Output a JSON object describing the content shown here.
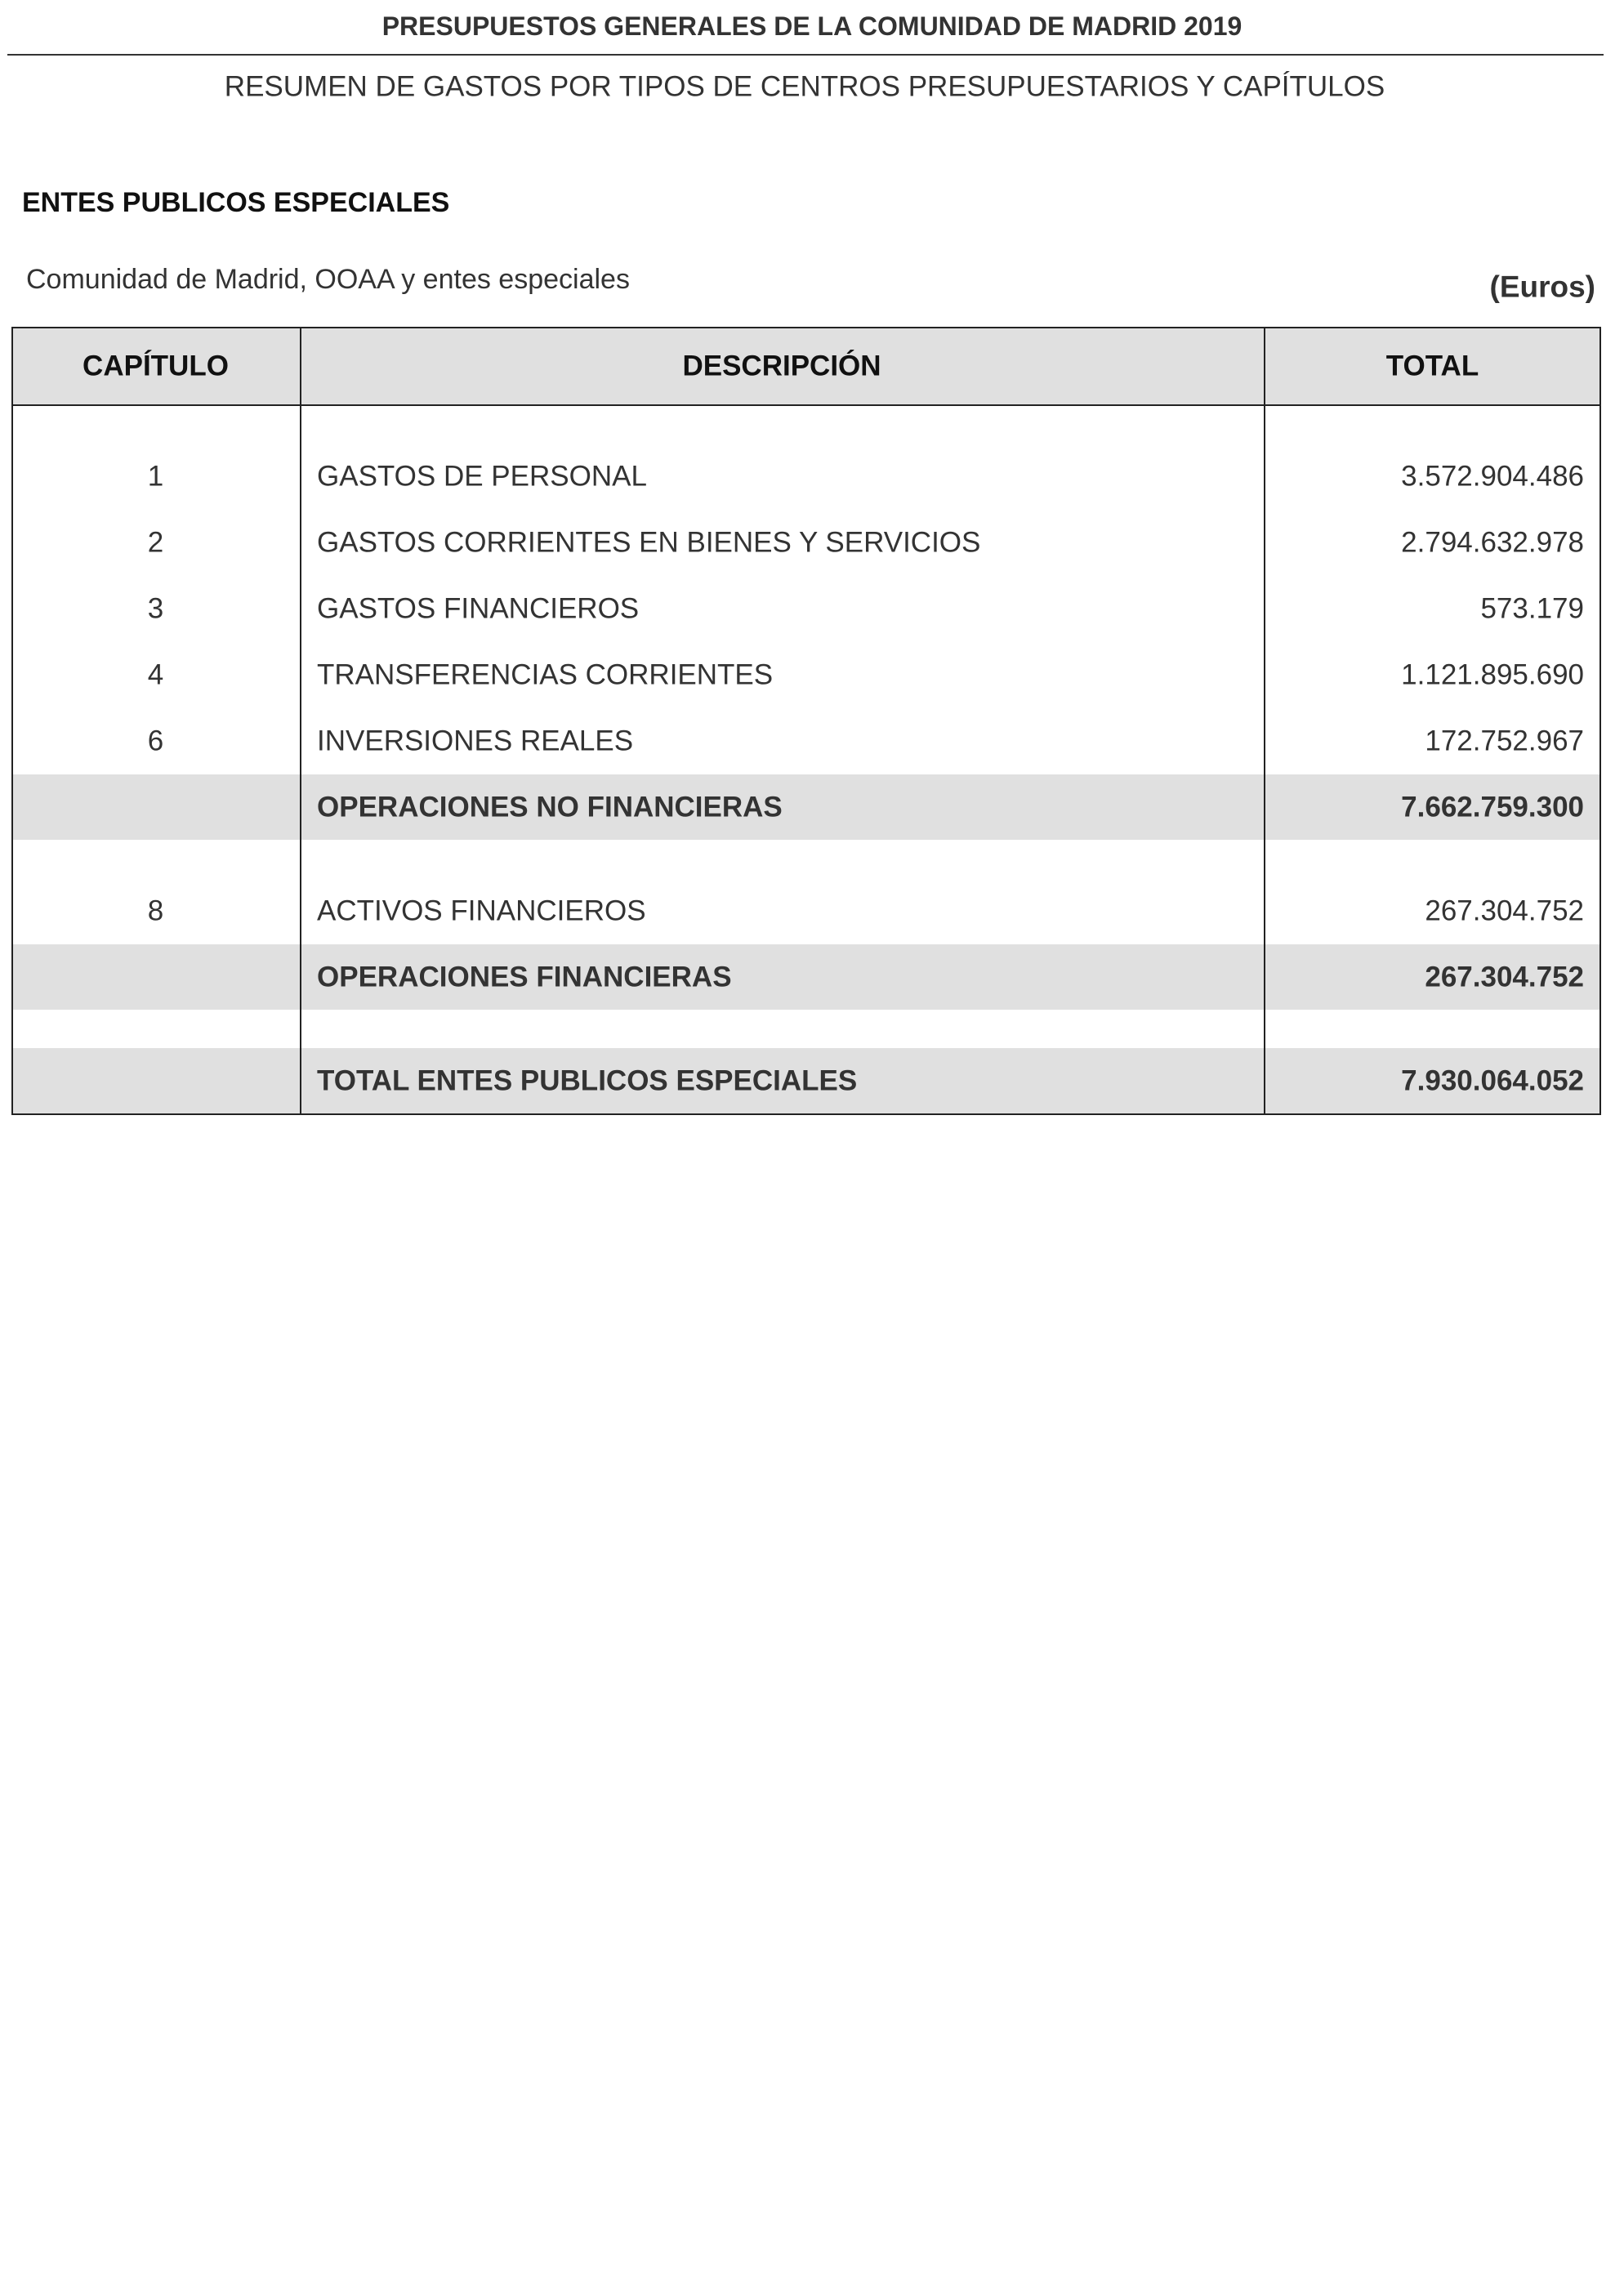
{
  "header": {
    "title": "PRESUPUESTOS GENERALES DE LA COMUNIDAD DE MADRID 2019",
    "subtitle": "RESUMEN DE GASTOS POR TIPOS DE CENTROS PRESUPUESTARIOS Y CAPÍTULOS"
  },
  "section": "ENTES PUBLICOS ESPECIALES",
  "scope": "Comunidad de Madrid, OOAA y entes especiales",
  "unit": "(Euros)",
  "table": {
    "columns": [
      "CAPÍTULO",
      "DESCRIPCIÓN",
      "TOTAL"
    ],
    "groups": [
      {
        "rows": [
          {
            "chapter": "1",
            "description": "GASTOS DE PERSONAL",
            "total": "3.572.904.486"
          },
          {
            "chapter": "2",
            "description": "GASTOS CORRIENTES EN BIENES Y SERVICIOS",
            "total": "2.794.632.978"
          },
          {
            "chapter": "3",
            "description": "GASTOS FINANCIEROS",
            "total": "573.179"
          },
          {
            "chapter": "4",
            "description": "TRANSFERENCIAS CORRIENTES",
            "total": "1.121.895.690"
          },
          {
            "chapter": "6",
            "description": "INVERSIONES REALES",
            "total": "172.752.967"
          }
        ],
        "subtotal": {
          "description": "OPERACIONES NO FINANCIERAS",
          "total": "7.662.759.300"
        }
      },
      {
        "rows": [
          {
            "chapter": "8",
            "description": "ACTIVOS FINANCIEROS",
            "total": "267.304.752"
          }
        ],
        "subtotal": {
          "description": "OPERACIONES FINANCIERAS",
          "total": "267.304.752"
        }
      }
    ],
    "total": {
      "description": "TOTAL ENTES PUBLICOS ESPECIALES",
      "total": "7.930.064.052"
    }
  }
}
